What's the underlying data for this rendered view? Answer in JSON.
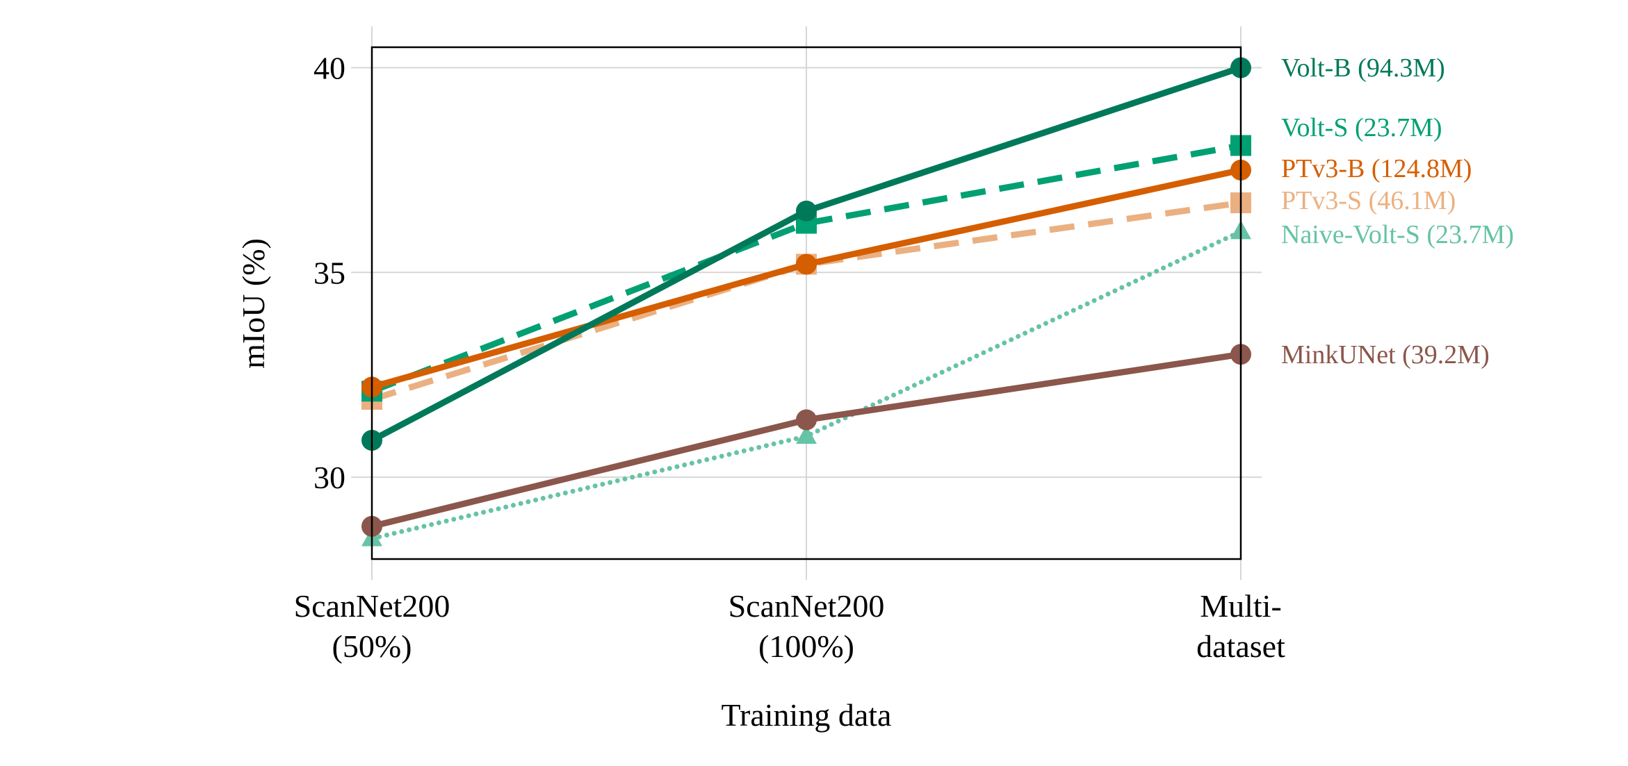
{
  "chart_data": {
    "type": "line",
    "title": "",
    "xlabel": "Training data",
    "ylabel": "mIoU (%)",
    "categories": [
      [
        "ScanNet200",
        "(50%)"
      ],
      [
        "ScanNet200",
        "(100%)"
      ],
      [
        "Multi-",
        "dataset"
      ]
    ],
    "yticks": [
      30,
      35,
      40
    ],
    "ylim": [
      28,
      40.5
    ],
    "grid": true,
    "legend": "direct labels at right end of lines",
    "series": [
      {
        "name": "Volt-B (94.3M)",
        "values": [
          30.9,
          36.5,
          40.0
        ],
        "color": "#00795a",
        "dash": "solid",
        "marker": "circle"
      },
      {
        "name": "Volt-S (23.7M)",
        "values": [
          32.1,
          36.2,
          38.1
        ],
        "color": "#00a073",
        "dash": "dashed",
        "marker": "square"
      },
      {
        "name": "PTv3-B (124.8M)",
        "values": [
          32.2,
          35.2,
          37.5
        ],
        "color": "#d55e00",
        "dash": "solid",
        "marker": "circle"
      },
      {
        "name": "PTv3-S (46.1M)",
        "values": [
          31.9,
          35.2,
          36.7
        ],
        "color": "#ebb081",
        "dash": "dashed",
        "marker": "square"
      },
      {
        "name": "Naive-Volt-S (23.7M)",
        "values": [
          28.5,
          31.0,
          36.0
        ],
        "color": "#66c3a6",
        "dash": "dotted",
        "marker": "triangle"
      },
      {
        "name": "MinkUNet (39.2M)",
        "values": [
          28.8,
          31.4,
          33.0
        ],
        "color": "#8b564b",
        "dash": "solid",
        "marker": "circle"
      }
    ]
  }
}
